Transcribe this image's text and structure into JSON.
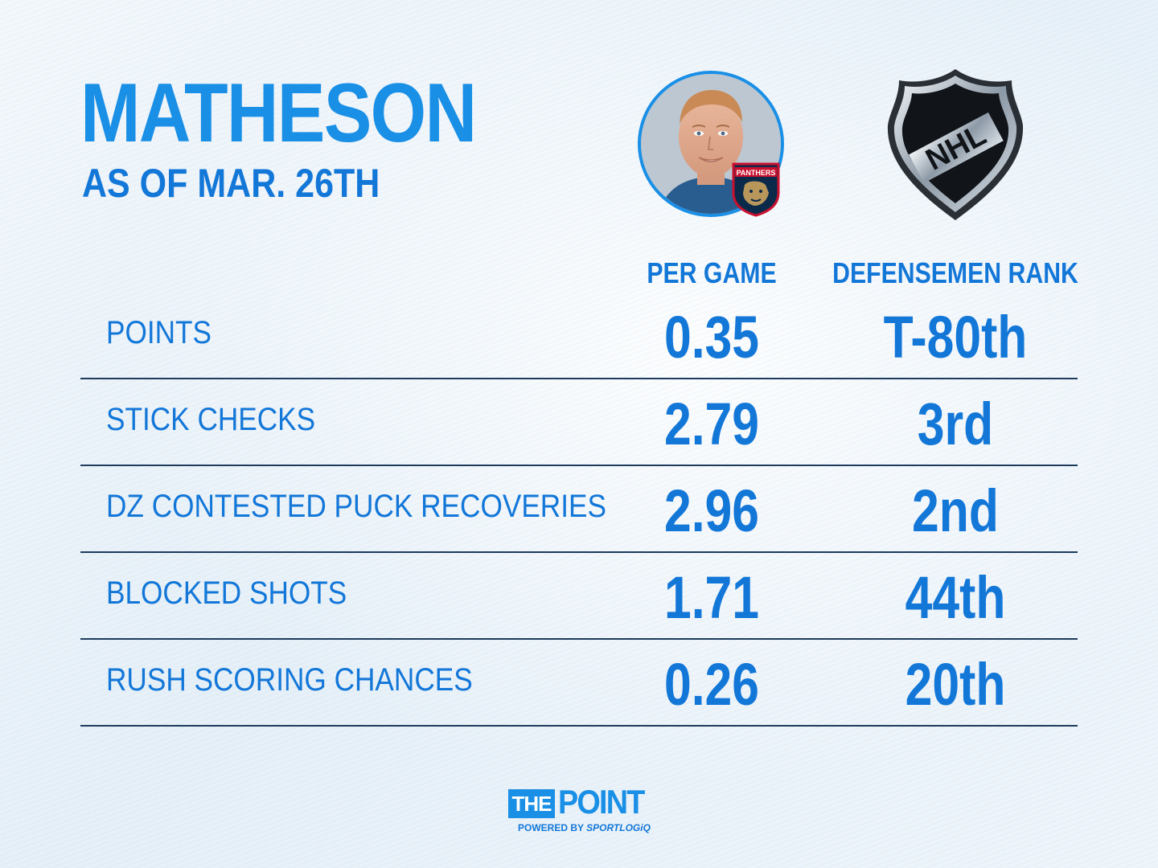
{
  "header": {
    "player_name": "MATHESON",
    "as_of": "AS OF MAR. 26TH"
  },
  "images": {
    "player_photo": "player-headshot",
    "team_logo": "panthers-logo",
    "team_logo_text": "PANTHERS",
    "league_logo": "nhl-shield-logo",
    "league_logo_text": "NHL"
  },
  "columns": {
    "per_game": "PER GAME",
    "rank": "DEFENSEMEN RANK"
  },
  "stats": [
    {
      "label": "POINTS",
      "per_game": "0.35",
      "rank": "T-80th"
    },
    {
      "label": "STICK CHECKS",
      "per_game": "2.79",
      "rank": "3rd"
    },
    {
      "label": "DZ CONTESTED PUCK RECOVERIES",
      "per_game": "2.96",
      "rank": "2nd"
    },
    {
      "label": "BLOCKED SHOTS",
      "per_game": "1.71",
      "rank": "44th"
    },
    {
      "label": "RUSH SCORING CHANCES",
      "per_game": "0.26",
      "rank": "20th"
    }
  ],
  "footer": {
    "brand_box": "THE",
    "brand_word": "POINT",
    "powered_by": "POWERED BY",
    "sponsor": "SPORTLOGiQ"
  },
  "colors": {
    "accent": "#1a8fe6",
    "text_blue": "#1377d8",
    "rule": "#1d3b5c",
    "background": "#e8f1f8"
  }
}
